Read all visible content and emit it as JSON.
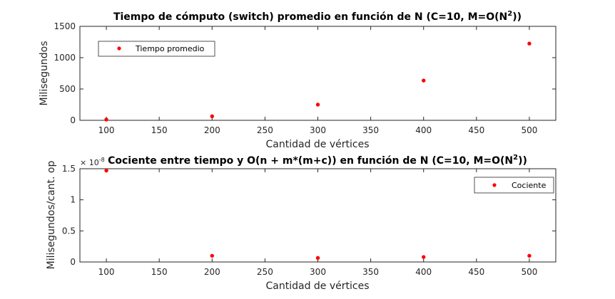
{
  "chart_data": [
    {
      "type": "scatter",
      "title_main": "Tiempo de cómputo (switch) promedio en función de N (C=10, M=O(N",
      "title_sup": "2",
      "title_tail": "))",
      "xlabel": "Cantidad de vértices",
      "ylabel": "Milisegundos",
      "xlim": [
        75,
        525
      ],
      "ylim": [
        0,
        1500
      ],
      "xticks": [
        100,
        150,
        200,
        250,
        300,
        350,
        400,
        450,
        500
      ],
      "yticks": [
        0,
        500,
        1000,
        1500
      ],
      "series": [
        {
          "name": "Tiempo promedio",
          "color": "#ff0000",
          "x": [
            100,
            200,
            300,
            400,
            500
          ],
          "y": [
            12,
            65,
            250,
            635,
            1225
          ]
        }
      ],
      "legend": "top-left"
    },
    {
      "type": "scatter",
      "title_main": "Cociente entre tiempo y O(n + m*(m+c)) en función de N (C=10, M=O(N",
      "title_sup": "2",
      "title_tail": "))",
      "xlabel": "Cantidad de vértices",
      "ylabel": "Milisegundos/cant. op",
      "exponent_base": "× 10",
      "exponent_power": "-8",
      "xlim": [
        75,
        525
      ],
      "ylim": [
        0,
        1.5
      ],
      "xticks": [
        100,
        150,
        200,
        250,
        300,
        350,
        400,
        450,
        500
      ],
      "yticks": [
        0,
        0.5,
        1,
        1.5
      ],
      "series": [
        {
          "name": "Cociente",
          "color": "#ff0000",
          "x": [
            100,
            200,
            300,
            400,
            500
          ],
          "y": [
            1.47,
            0.1,
            0.065,
            0.08,
            0.1
          ]
        }
      ],
      "legend": "top-right"
    }
  ]
}
